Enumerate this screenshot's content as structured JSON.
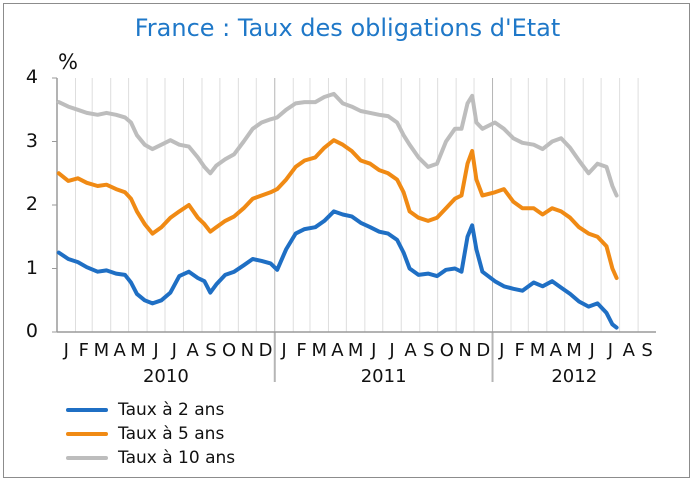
{
  "chart_data": {
    "type": "line",
    "title": "France : Taux des obligations d'Etat",
    "y_unit": "%",
    "ylim": [
      0,
      4
    ],
    "y_ticks": [
      "0",
      "1",
      "2",
      "3",
      "4"
    ],
    "xlim": [
      "2010-01-01",
      "2012-10-01"
    ],
    "x_month_labels": [
      "J",
      "F",
      "M",
      "A",
      "M",
      "J",
      "J",
      "A",
      "S",
      "O",
      "N",
      "D",
      "J",
      "F",
      "M",
      "A",
      "M",
      "J",
      "J",
      "A",
      "S",
      "O",
      "N",
      "D",
      "J",
      "F",
      "M",
      "A",
      "M",
      "J",
      "J",
      "A",
      "S"
    ],
    "x_year_labels": [
      "2010",
      "2011",
      "2012"
    ],
    "grid": "vertical monthly lines",
    "legend_placement": "bottom-left",
    "series": [
      {
        "name": "Taux à 2 ans",
        "color": "#1f6fc4",
        "points": [
          [
            "2010-01-04",
            1.25
          ],
          [
            "2010-01-20",
            1.15
          ],
          [
            "2010-02-05",
            1.1
          ],
          [
            "2010-02-20",
            1.02
          ],
          [
            "2010-03-10",
            0.95
          ],
          [
            "2010-03-25",
            0.97
          ],
          [
            "2010-04-10",
            0.92
          ],
          [
            "2010-04-25",
            0.9
          ],
          [
            "2010-05-05",
            0.78
          ],
          [
            "2010-05-15",
            0.6
          ],
          [
            "2010-05-28",
            0.5
          ],
          [
            "2010-06-10",
            0.45
          ],
          [
            "2010-06-25",
            0.5
          ],
          [
            "2010-07-10",
            0.62
          ],
          [
            "2010-07-25",
            0.88
          ],
          [
            "2010-08-10",
            0.95
          ],
          [
            "2010-08-25",
            0.85
          ],
          [
            "2010-09-05",
            0.8
          ],
          [
            "2010-09-15",
            0.62
          ],
          [
            "2010-09-25",
            0.75
          ],
          [
            "2010-10-10",
            0.9
          ],
          [
            "2010-10-25",
            0.95
          ],
          [
            "2010-11-10",
            1.05
          ],
          [
            "2010-11-25",
            1.15
          ],
          [
            "2010-12-10",
            1.12
          ],
          [
            "2010-12-25",
            1.08
          ],
          [
            "2011-01-05",
            0.98
          ],
          [
            "2011-01-20",
            1.3
          ],
          [
            "2011-02-05",
            1.55
          ],
          [
            "2011-02-20",
            1.62
          ],
          [
            "2011-03-10",
            1.65
          ],
          [
            "2011-03-25",
            1.75
          ],
          [
            "2011-04-10",
            1.9
          ],
          [
            "2011-04-25",
            1.85
          ],
          [
            "2011-05-10",
            1.82
          ],
          [
            "2011-05-25",
            1.72
          ],
          [
            "2011-06-10",
            1.65
          ],
          [
            "2011-06-25",
            1.58
          ],
          [
            "2011-07-10",
            1.55
          ],
          [
            "2011-07-25",
            1.45
          ],
          [
            "2011-08-05",
            1.25
          ],
          [
            "2011-08-15",
            1.0
          ],
          [
            "2011-08-30",
            0.9
          ],
          [
            "2011-09-15",
            0.92
          ],
          [
            "2011-09-30",
            0.88
          ],
          [
            "2011-10-15",
            0.98
          ],
          [
            "2011-10-30",
            1.0
          ],
          [
            "2011-11-10",
            0.95
          ],
          [
            "2011-11-20",
            1.5
          ],
          [
            "2011-11-28",
            1.68
          ],
          [
            "2011-12-05",
            1.3
          ],
          [
            "2011-12-15",
            0.95
          ],
          [
            "2012-01-05",
            0.8
          ],
          [
            "2012-01-20",
            0.72
          ],
          [
            "2012-02-05",
            0.68
          ],
          [
            "2012-02-20",
            0.65
          ],
          [
            "2012-03-10",
            0.78
          ],
          [
            "2012-03-25",
            0.72
          ],
          [
            "2012-04-10",
            0.8
          ],
          [
            "2012-04-25",
            0.7
          ],
          [
            "2012-05-10",
            0.6
          ],
          [
            "2012-05-25",
            0.48
          ],
          [
            "2012-06-10",
            0.4
          ],
          [
            "2012-06-25",
            0.45
          ],
          [
            "2012-07-10",
            0.3
          ],
          [
            "2012-07-20",
            0.12
          ],
          [
            "2012-07-27",
            0.07
          ]
        ]
      },
      {
        "name": "Taux à 5 ans",
        "color": "#f08a14",
        "points": [
          [
            "2010-01-04",
            2.5
          ],
          [
            "2010-01-20",
            2.38
          ],
          [
            "2010-02-05",
            2.42
          ],
          [
            "2010-02-20",
            2.35
          ],
          [
            "2010-03-10",
            2.3
          ],
          [
            "2010-03-25",
            2.32
          ],
          [
            "2010-04-10",
            2.25
          ],
          [
            "2010-04-25",
            2.2
          ],
          [
            "2010-05-05",
            2.1
          ],
          [
            "2010-05-15",
            1.9
          ],
          [
            "2010-05-28",
            1.7
          ],
          [
            "2010-06-10",
            1.55
          ],
          [
            "2010-06-25",
            1.65
          ],
          [
            "2010-07-10",
            1.8
          ],
          [
            "2010-07-25",
            1.9
          ],
          [
            "2010-08-10",
            2.0
          ],
          [
            "2010-08-25",
            1.8
          ],
          [
            "2010-09-05",
            1.7
          ],
          [
            "2010-09-15",
            1.58
          ],
          [
            "2010-09-25",
            1.65
          ],
          [
            "2010-10-10",
            1.75
          ],
          [
            "2010-10-25",
            1.82
          ],
          [
            "2010-11-10",
            1.95
          ],
          [
            "2010-11-25",
            2.1
          ],
          [
            "2010-12-10",
            2.15
          ],
          [
            "2010-12-25",
            2.2
          ],
          [
            "2011-01-05",
            2.25
          ],
          [
            "2011-01-20",
            2.4
          ],
          [
            "2011-02-05",
            2.6
          ],
          [
            "2011-02-20",
            2.7
          ],
          [
            "2011-03-10",
            2.75
          ],
          [
            "2011-03-25",
            2.9
          ],
          [
            "2011-04-10",
            3.02
          ],
          [
            "2011-04-25",
            2.95
          ],
          [
            "2011-05-10",
            2.85
          ],
          [
            "2011-05-25",
            2.7
          ],
          [
            "2011-06-10",
            2.65
          ],
          [
            "2011-06-25",
            2.55
          ],
          [
            "2011-07-10",
            2.5
          ],
          [
            "2011-07-25",
            2.4
          ],
          [
            "2011-08-05",
            2.2
          ],
          [
            "2011-08-15",
            1.9
          ],
          [
            "2011-08-30",
            1.8
          ],
          [
            "2011-09-15",
            1.75
          ],
          [
            "2011-09-30",
            1.8
          ],
          [
            "2011-10-15",
            1.95
          ],
          [
            "2011-10-30",
            2.1
          ],
          [
            "2011-11-10",
            2.15
          ],
          [
            "2011-11-20",
            2.65
          ],
          [
            "2011-11-28",
            2.85
          ],
          [
            "2011-12-05",
            2.4
          ],
          [
            "2011-12-15",
            2.15
          ],
          [
            "2012-01-05",
            2.2
          ],
          [
            "2012-01-20",
            2.25
          ],
          [
            "2012-02-05",
            2.05
          ],
          [
            "2012-02-20",
            1.95
          ],
          [
            "2012-03-10",
            1.95
          ],
          [
            "2012-03-25",
            1.85
          ],
          [
            "2012-04-10",
            1.95
          ],
          [
            "2012-04-25",
            1.9
          ],
          [
            "2012-05-10",
            1.8
          ],
          [
            "2012-05-25",
            1.65
          ],
          [
            "2012-06-10",
            1.55
          ],
          [
            "2012-06-25",
            1.5
          ],
          [
            "2012-07-10",
            1.35
          ],
          [
            "2012-07-20",
            1.0
          ],
          [
            "2012-07-27",
            0.85
          ]
        ]
      },
      {
        "name": "Taux à 10 ans",
        "color": "#bdbdbd",
        "points": [
          [
            "2010-01-04",
            3.62
          ],
          [
            "2010-01-20",
            3.55
          ],
          [
            "2010-02-05",
            3.5
          ],
          [
            "2010-02-20",
            3.45
          ],
          [
            "2010-03-10",
            3.42
          ],
          [
            "2010-03-25",
            3.45
          ],
          [
            "2010-04-10",
            3.42
          ],
          [
            "2010-04-25",
            3.38
          ],
          [
            "2010-05-05",
            3.3
          ],
          [
            "2010-05-15",
            3.1
          ],
          [
            "2010-05-28",
            2.95
          ],
          [
            "2010-06-10",
            2.88
          ],
          [
            "2010-06-25",
            2.95
          ],
          [
            "2010-07-10",
            3.02
          ],
          [
            "2010-07-25",
            2.95
          ],
          [
            "2010-08-10",
            2.92
          ],
          [
            "2010-08-25",
            2.75
          ],
          [
            "2010-09-05",
            2.6
          ],
          [
            "2010-09-15",
            2.5
          ],
          [
            "2010-09-25",
            2.62
          ],
          [
            "2010-10-10",
            2.72
          ],
          [
            "2010-10-25",
            2.8
          ],
          [
            "2010-11-10",
            3.0
          ],
          [
            "2010-11-25",
            3.2
          ],
          [
            "2010-12-10",
            3.3
          ],
          [
            "2010-12-25",
            3.35
          ],
          [
            "2011-01-05",
            3.38
          ],
          [
            "2011-01-20",
            3.5
          ],
          [
            "2011-02-05",
            3.6
          ],
          [
            "2011-02-20",
            3.62
          ],
          [
            "2011-03-10",
            3.62
          ],
          [
            "2011-03-25",
            3.7
          ],
          [
            "2011-04-10",
            3.75
          ],
          [
            "2011-04-25",
            3.6
          ],
          [
            "2011-05-10",
            3.55
          ],
          [
            "2011-05-25",
            3.48
          ],
          [
            "2011-06-10",
            3.45
          ],
          [
            "2011-06-25",
            3.42
          ],
          [
            "2011-07-10",
            3.4
          ],
          [
            "2011-07-25",
            3.3
          ],
          [
            "2011-08-05",
            3.1
          ],
          [
            "2011-08-15",
            2.95
          ],
          [
            "2011-08-30",
            2.75
          ],
          [
            "2011-09-15",
            2.6
          ],
          [
            "2011-09-30",
            2.65
          ],
          [
            "2011-10-15",
            3.0
          ],
          [
            "2011-10-30",
            3.2
          ],
          [
            "2011-11-10",
            3.2
          ],
          [
            "2011-11-20",
            3.6
          ],
          [
            "2011-11-28",
            3.72
          ],
          [
            "2011-12-05",
            3.3
          ],
          [
            "2011-12-15",
            3.2
          ],
          [
            "2012-01-05",
            3.3
          ],
          [
            "2012-01-20",
            3.2
          ],
          [
            "2012-02-05",
            3.05
          ],
          [
            "2012-02-20",
            2.98
          ],
          [
            "2012-03-10",
            2.95
          ],
          [
            "2012-03-25",
            2.88
          ],
          [
            "2012-04-10",
            3.0
          ],
          [
            "2012-04-25",
            3.05
          ],
          [
            "2012-05-10",
            2.9
          ],
          [
            "2012-05-25",
            2.7
          ],
          [
            "2012-06-10",
            2.5
          ],
          [
            "2012-06-25",
            2.65
          ],
          [
            "2012-07-10",
            2.6
          ],
          [
            "2012-07-20",
            2.3
          ],
          [
            "2012-07-27",
            2.15
          ]
        ]
      }
    ]
  }
}
